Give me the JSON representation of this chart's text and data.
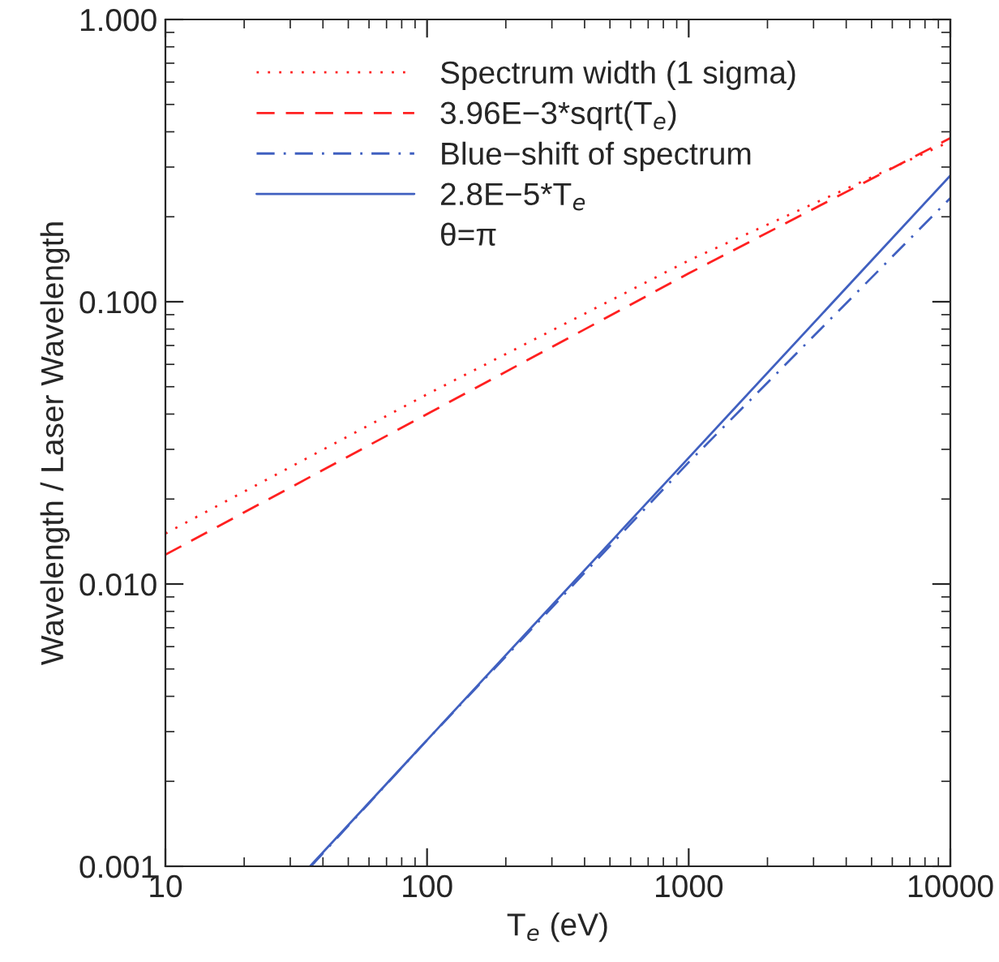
{
  "chart_data": {
    "type": "line",
    "xlabel": "T$_{e}$ (eV)",
    "ylabel": "Wavelength / Laser Wavelength",
    "log": "xy",
    "xlim": [
      10,
      10000
    ],
    "ylim": [
      0.001,
      1.0
    ],
    "xticks": [
      10,
      100,
      1000,
      10000
    ],
    "yticks": [
      {
        "value": 0.001,
        "label": "0.001"
      },
      {
        "value": 0.01,
        "label": "0.010"
      },
      {
        "value": 0.1,
        "label": "0.100"
      },
      {
        "value": 1.0,
        "label": "1.000"
      }
    ],
    "legend": "top left",
    "grid": false,
    "series": [
      {
        "name": "Spectrum width (1 sigma)",
        "color": "#ff2020",
        "line_style": "dotted",
        "x": [
          10,
          100,
          1000,
          10000
        ],
        "values": [
          0.0151,
          0.047,
          0.14,
          0.37
        ]
      },
      {
        "name": "3.96E−3*sqrt(T$_{e}$)",
        "color": "#ff2020",
        "line_style": "dashed",
        "x": [
          10,
          100,
          1000,
          10000
        ],
        "values": [
          0.0127,
          0.04,
          0.126,
          0.38
        ]
      },
      {
        "name": "Blue−shift of spectrum",
        "color": "#4060c0",
        "line_style": "dashdot",
        "x": [
          36,
          100,
          1000,
          10000
        ],
        "values": [
          0.001,
          0.0028,
          0.027,
          0.233
        ]
      },
      {
        "name": "2.8E−5*T$_{e}$",
        "color": "#4060c0",
        "line_style": "solid",
        "x": [
          35.7,
          100,
          1000,
          10000
        ],
        "values": [
          0.001,
          0.0028,
          0.028,
          0.28
        ]
      }
    ],
    "annotations": [
      "θ=π"
    ]
  }
}
